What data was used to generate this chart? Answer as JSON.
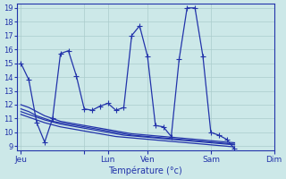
{
  "bg_color": "#cce8e8",
  "grid_color": "#aacccc",
  "line_color": "#2233aa",
  "xlabel": "Température (°c)",
  "ylim": [
    9,
    19
  ],
  "yticks": [
    9,
    10,
    11,
    12,
    13,
    14,
    15,
    16,
    17,
    18,
    19
  ],
  "xtick_positions": [
    0,
    8,
    11,
    16,
    24,
    32
  ],
  "xtick_labels": [
    "Jeu",
    "",
    "Lun",
    "Ven",
    "Sam",
    "Dim"
  ],
  "series1": [
    15,
    13.8,
    10.7,
    9.3,
    11.0,
    15.7,
    15.9,
    14.1,
    11.7,
    11.6,
    11.9,
    12.1,
    11.6,
    11.8,
    17.0,
    17.7,
    15.5,
    10.5,
    10.4,
    9.7,
    15.3,
    19.0,
    19.0,
    15.5,
    10.0,
    9.8,
    9.5,
    8.8
  ],
  "series2": [
    11.7,
    11.5,
    11.2,
    11.0,
    10.8,
    10.7,
    10.6,
    10.5,
    10.4,
    10.3,
    10.2,
    10.1,
    10.0,
    9.9,
    9.8,
    9.75,
    9.7,
    9.65,
    9.6,
    9.55,
    9.5,
    9.45,
    9.4,
    9.35,
    9.3,
    9.25,
    9.2,
    9.15
  ],
  "series3": [
    11.5,
    11.3,
    11.1,
    10.9,
    10.75,
    10.6,
    10.5,
    10.4,
    10.3,
    10.2,
    10.1,
    10.0,
    9.9,
    9.8,
    9.75,
    9.7,
    9.65,
    9.6,
    9.55,
    9.5,
    9.45,
    9.4,
    9.35,
    9.3,
    9.25,
    9.2,
    9.15,
    9.1
  ],
  "series4": [
    11.3,
    11.1,
    10.9,
    10.7,
    10.55,
    10.4,
    10.3,
    10.2,
    10.1,
    10.0,
    9.9,
    9.8,
    9.7,
    9.65,
    9.6,
    9.55,
    9.5,
    9.45,
    9.4,
    9.35,
    9.3,
    9.25,
    9.2,
    9.15,
    9.1,
    9.05,
    9.0,
    8.95
  ],
  "series5": [
    12.0,
    11.8,
    11.5,
    11.2,
    11.0,
    10.8,
    10.7,
    10.6,
    10.5,
    10.4,
    10.3,
    10.2,
    10.1,
    10.0,
    9.9,
    9.85,
    9.8,
    9.75,
    9.7,
    9.65,
    9.6,
    9.55,
    9.5,
    9.45,
    9.4,
    9.35,
    9.3,
    9.25
  ]
}
